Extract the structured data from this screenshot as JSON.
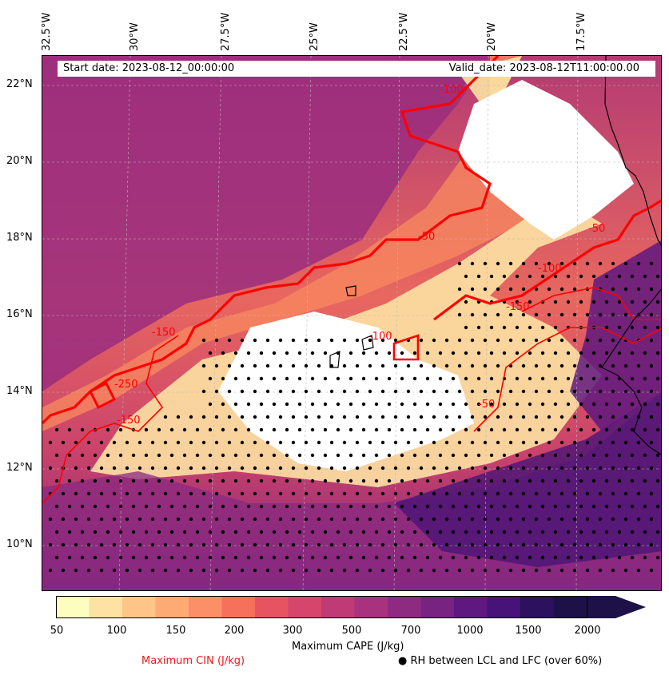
{
  "map": {
    "start_date": "Start date: 2023-08-12_00:00:00",
    "valid_date": "Valid_date: 2023-08-12T11:00:00.00",
    "longitude_labels": [
      "32.5°W",
      "30°W",
      "27.5°W",
      "25°W",
      "22.5°W",
      "20°W",
      "17.5°W"
    ],
    "latitude_labels": [
      "22°N",
      "20°N",
      "18°N",
      "16°N",
      "14°N",
      "12°N",
      "10°N"
    ],
    "contour_labels": [
      "-150",
      "-150",
      "-100",
      "-50",
      "-150",
      "-100",
      "-250",
      "-50",
      "-50",
      "-100"
    ],
    "contour_color": "#ff0000"
  },
  "colorbar": {
    "ticks": [
      "50",
      "100",
      "150",
      "200",
      "300",
      "500",
      "700",
      "1000",
      "1500",
      "2000"
    ],
    "colors": [
      "#fcfdbf",
      "#fde2a3",
      "#fec488",
      "#feaa74",
      "#fb8f67",
      "#f7705c",
      "#e85362",
      "#d6456c",
      "#c03a76",
      "#a8327d",
      "#8f2a81",
      "#782281",
      "#5f187f",
      "#471378",
      "#2b115e",
      "#1d1147"
    ],
    "title": "Maximum CAPE (J/kg)"
  },
  "legend": {
    "cin_label": "Maximum CIN (J/kg)",
    "rh_label": "RH between LCL and LFC (over 60%)",
    "rh_marker": "●"
  }
}
